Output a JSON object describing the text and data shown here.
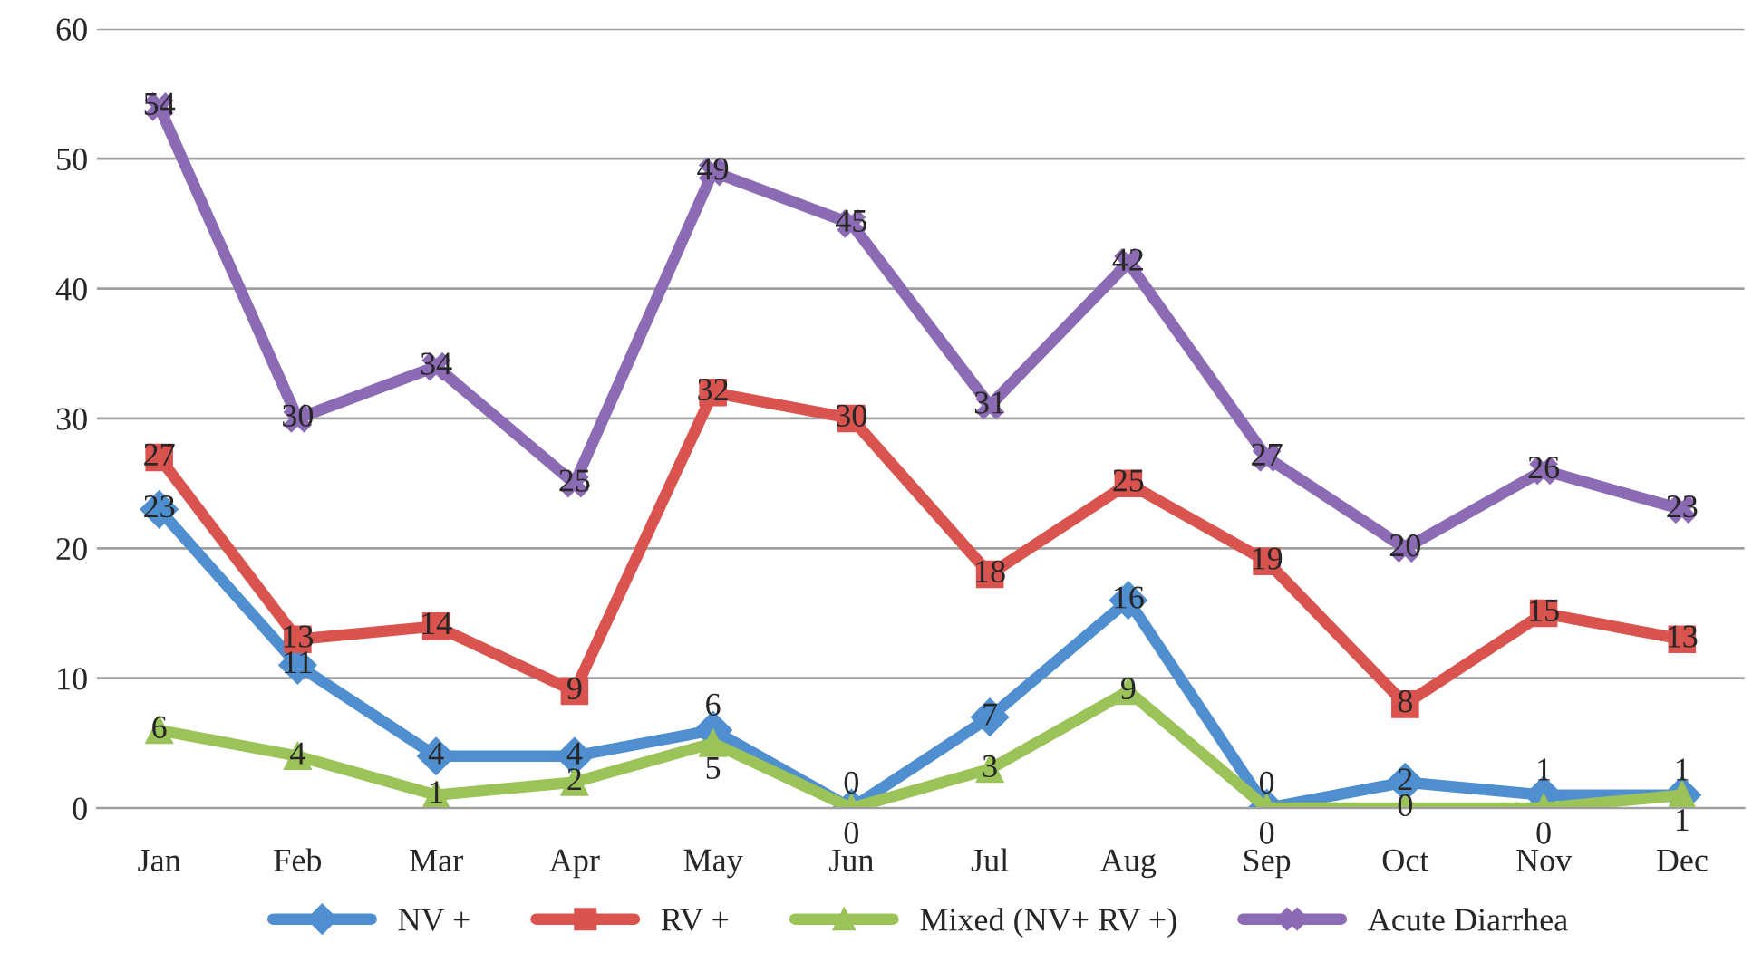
{
  "chart_data": {
    "type": "line",
    "categories": [
      "Jan",
      "Feb",
      "Mar",
      "Apr",
      "May",
      "Jun",
      "Jul",
      "Aug",
      "Sep",
      "Oct",
      "Nov",
      "Dec"
    ],
    "series": [
      {
        "name": "NV +",
        "color": "#4f8fcf",
        "marker": "diamond",
        "values": [
          23,
          11,
          4,
          4,
          6,
          0,
          7,
          16,
          0,
          2,
          1,
          1
        ]
      },
      {
        "name": "RV +",
        "color": "#d9534f",
        "marker": "square",
        "values": [
          27,
          13,
          14,
          9,
          32,
          30,
          18,
          25,
          19,
          8,
          15,
          13
        ]
      },
      {
        "name": "Mixed (NV+ RV +)",
        "color": "#9bc35a",
        "marker": "triangle",
        "values": [
          6,
          4,
          1,
          2,
          5,
          0,
          3,
          9,
          0,
          0,
          0,
          1
        ]
      },
      {
        "name": "Acute Diarrhea",
        "color": "#8b6bb3",
        "marker": "cross",
        "values": [
          54,
          30,
          34,
          25,
          49,
          45,
          31,
          42,
          27,
          20,
          26,
          23
        ]
      }
    ],
    "ylim": [
      0,
      60
    ],
    "yticks": [
      0,
      10,
      20,
      30,
      40,
      50,
      60
    ],
    "grid": "y",
    "legend": "bottom",
    "data_labels": true,
    "line_style": "solid"
  }
}
